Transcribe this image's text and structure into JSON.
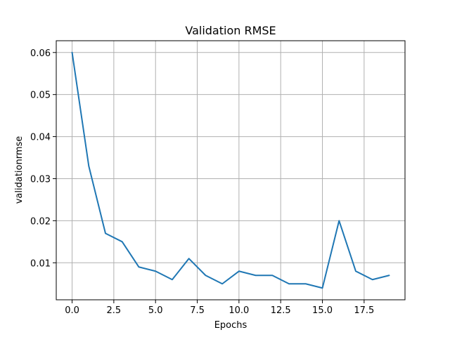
{
  "chart_data": {
    "type": "line",
    "title": "Validation RMSE",
    "xlabel": "Epochs",
    "ylabel": "validationrmse",
    "x": [
      0,
      1,
      2,
      3,
      4,
      5,
      6,
      7,
      8,
      9,
      10,
      11,
      12,
      13,
      14,
      15,
      16,
      17,
      18,
      19
    ],
    "series": [
      {
        "values": [
          0.06,
          0.033,
          0.017,
          0.015,
          0.009,
          0.008,
          0.006,
          0.011,
          0.007,
          0.005,
          0.008,
          0.007,
          0.007,
          0.005,
          0.005,
          0.004,
          0.02,
          0.008,
          0.006,
          0.007
        ],
        "color": "#1f77b4"
      }
    ],
    "xticks": [
      0.0,
      2.5,
      5.0,
      7.5,
      10.0,
      12.5,
      15.0,
      17.5
    ],
    "xtick_labels": [
      "0.0",
      "2.5",
      "5.0",
      "7.5",
      "10.0",
      "12.5",
      "15.0",
      "17.5"
    ],
    "yticks": [
      0.01,
      0.02,
      0.03,
      0.04,
      0.05,
      0.06
    ],
    "ytick_labels": [
      "0.01",
      "0.02",
      "0.03",
      "0.04",
      "0.05",
      "0.06"
    ],
    "xlim": [
      -0.95,
      19.95
    ],
    "ylim": [
      0.0012,
      0.0628
    ],
    "grid": true,
    "grid_color": "#b0b0b0"
  }
}
